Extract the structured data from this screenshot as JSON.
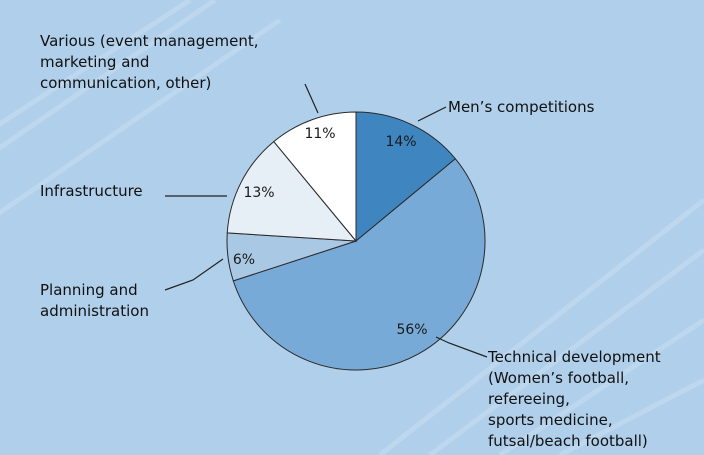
{
  "chart_data": {
    "type": "pie",
    "title": "",
    "start": "12 o'clock, clockwise",
    "slices": [
      {
        "label": [
          "Men’s competitions"
        ],
        "value": 14,
        "pct_label": "14%",
        "color": "#3f86c0"
      },
      {
        "label": [
          "Technical development",
          "(Women’s football,",
          "refereeing,",
          "sports medicine,",
          "futsal/beach football)"
        ],
        "value": 56,
        "pct_label": "56%",
        "color": "#77aad6"
      },
      {
        "label": [
          "Planning and",
          "administration"
        ],
        "value": 6,
        "pct_label": "6%",
        "color": "#a9c8e4"
      },
      {
        "label": [
          "Infrastructure"
        ],
        "value": 13,
        "pct_label": "13%",
        "color": "#e6eef6"
      },
      {
        "label": [
          "Various (event management,",
          "marketing and",
          "communication, other)"
        ],
        "value": 11,
        "pct_label": "11%",
        "color": "#ffffff"
      }
    ],
    "colors": {
      "background": "#b0cfea",
      "stripe": "#c7ddf1",
      "border": "#2a2a2a"
    }
  }
}
